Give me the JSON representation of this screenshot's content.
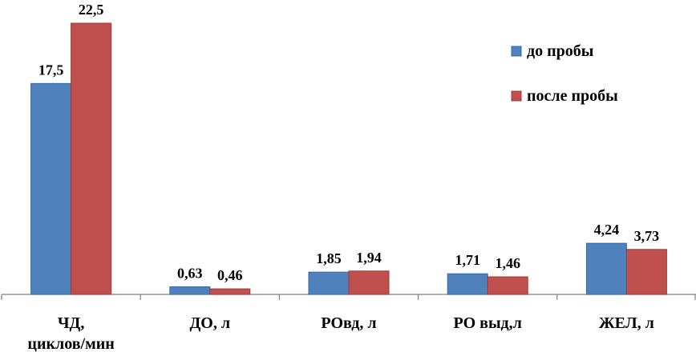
{
  "chart_data": {
    "type": "bar",
    "title": "",
    "xlabel": "",
    "ylabel": "",
    "ylim": [
      0,
      25
    ],
    "grid": false,
    "legend_position": "top-right",
    "categories": [
      [
        "ЧД,",
        "циклов/мин"
      ],
      [
        "ДО, л"
      ],
      [
        "РОвд, л"
      ],
      [
        "РО выд,л"
      ],
      [
        "ЖЕЛ, л"
      ]
    ],
    "series": [
      {
        "name": "до пробы",
        "color": "#4F81BD",
        "values": [
          17.5,
          0.63,
          1.85,
          1.71,
          4.24
        ],
        "labels": [
          "17,5",
          "0,63",
          "1,85",
          "1,71",
          "4,24"
        ]
      },
      {
        "name": "после пробы",
        "color": "#C0504D",
        "values": [
          22.5,
          0.46,
          1.94,
          1.46,
          3.73
        ],
        "labels": [
          "22,5",
          "0,46",
          "1,94",
          "1,46",
          "3,73"
        ]
      }
    ]
  }
}
